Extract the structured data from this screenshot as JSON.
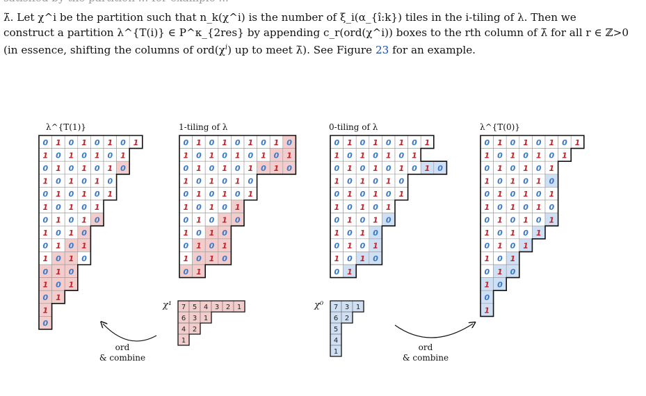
{
  "paragraph": {
    "line0": "satisfied by the partition ... for example ...",
    "line1": "λ̄. Let χ^i be the partition such that n_k(χ^i) is the number of ξ_i(α_{î:k}) tiles in the i-tiling of λ. Then we",
    "line2": "construct a partition λ^{T(i)} ∈ P^κ_{2res} by appending c_r(ord(χ^i)) boxes to the rth column of λ̄ for all r ∈ ℤ>0",
    "line3a": "(in essence, shifting the columns of ord(χ",
    "line3b": ") up to meet λ̄). See Figure ",
    "figure_ref": "23",
    "line3c": " for an example."
  },
  "labels": {
    "d1": "λ^{T(1)}",
    "d2": "1-tiling of λ",
    "d3": "0-tiling of λ",
    "d4": "λ^{T(0)}",
    "chi1": "χ¹",
    "chi0": "χ⁰",
    "ord1": "ord",
    "comb1": "& combine",
    "ord2": "ord",
    "comb2": "& combine"
  },
  "colors": {
    "red_digit": "#c0242b",
    "blue_digit": "#3a78c8",
    "red_fill": "#f3cccc",
    "blue_fill": "#cfe0f5"
  },
  "diagrams": [
    {
      "name": "lambda-T1",
      "rows": [
        "01010101",
        "1010101",
        "0101010",
        "101010",
        "010101",
        "10101",
        "01010",
        "1010",
        "0101",
        "1010",
        "010",
        "101",
        "01",
        "1",
        "0"
      ],
      "shaded": [
        [
          2,
          6
        ],
        [
          5,
          5
        ],
        [
          6,
          4
        ],
        [
          7,
          3
        ],
        [
          8,
          2
        ],
        [
          8,
          3
        ],
        [
          9,
          1
        ],
        [
          9,
          2
        ],
        [
          10,
          0
        ],
        [
          10,
          1
        ],
        [
          10,
          2
        ],
        [
          11,
          0
        ],
        [
          11,
          1
        ],
        [
          11,
          2
        ],
        [
          12,
          0
        ],
        [
          12,
          1
        ],
        [
          13,
          0
        ],
        [
          14,
          0
        ]
      ],
      "shade": "red"
    },
    {
      "name": "one-tiling",
      "rows": [
        "010101010",
        "101010101",
        "010101010",
        "101010",
        "010101",
        "10101",
        "01010",
        "1010",
        "0101",
        "1010",
        "01"
      ],
      "shaded": [
        [
          0,
          8
        ],
        [
          1,
          7
        ],
        [
          1,
          8
        ],
        [
          2,
          6
        ],
        [
          2,
          7
        ],
        [
          2,
          8
        ],
        [
          5,
          4
        ],
        [
          6,
          3
        ],
        [
          6,
          4
        ],
        [
          7,
          2
        ],
        [
          7,
          3
        ],
        [
          8,
          1
        ],
        [
          8,
          2
        ],
        [
          8,
          3
        ],
        [
          9,
          1
        ],
        [
          9,
          2
        ],
        [
          9,
          3
        ],
        [
          10,
          0
        ],
        [
          10,
          1
        ]
      ],
      "shade": "red"
    },
    {
      "name": "zero-tiling",
      "rows": [
        "01010101",
        "1010101",
        "010101010",
        "101010",
        "010101",
        "10101",
        "01010",
        "1010",
        "0101",
        "1010",
        "01"
      ],
      "shaded": [
        [
          1,
          7
        ],
        [
          2,
          7
        ],
        [
          2,
          8
        ],
        [
          6,
          4
        ],
        [
          7,
          3
        ],
        [
          8,
          3
        ],
        [
          9,
          2
        ],
        [
          9,
          3
        ],
        [
          10,
          1
        ]
      ],
      "shade": "blue"
    },
    {
      "name": "lambda-T0",
      "rows": [
        "01010101",
        "1010101",
        "010101",
        "101010",
        "010101",
        "101010",
        "010101",
        "10101",
        "0101",
        "101",
        "010",
        "10",
        "0",
        "1"
      ],
      "shaded": [
        [
          3,
          5
        ],
        [
          6,
          5
        ],
        [
          7,
          4
        ],
        [
          8,
          3
        ],
        [
          9,
          2
        ],
        [
          10,
          1
        ],
        [
          10,
          2
        ],
        [
          11,
          0
        ],
        [
          11,
          1
        ],
        [
          12,
          0
        ],
        [
          13,
          0
        ]
      ],
      "shade": "blue"
    }
  ],
  "chi": [
    {
      "name": "chi-1",
      "rows": [
        [
          "7",
          "5",
          "4",
          "3",
          "2",
          "1"
        ],
        [
          "6",
          "3",
          "1"
        ],
        [
          "4",
          "2"
        ],
        [
          "1"
        ]
      ],
      "shade": "red"
    },
    {
      "name": "chi-0",
      "rows": [
        [
          "7",
          "3",
          "1"
        ],
        [
          "6",
          "2"
        ],
        [
          "5"
        ],
        [
          "4"
        ],
        [
          "1"
        ]
      ],
      "shade": "blue"
    }
  ]
}
